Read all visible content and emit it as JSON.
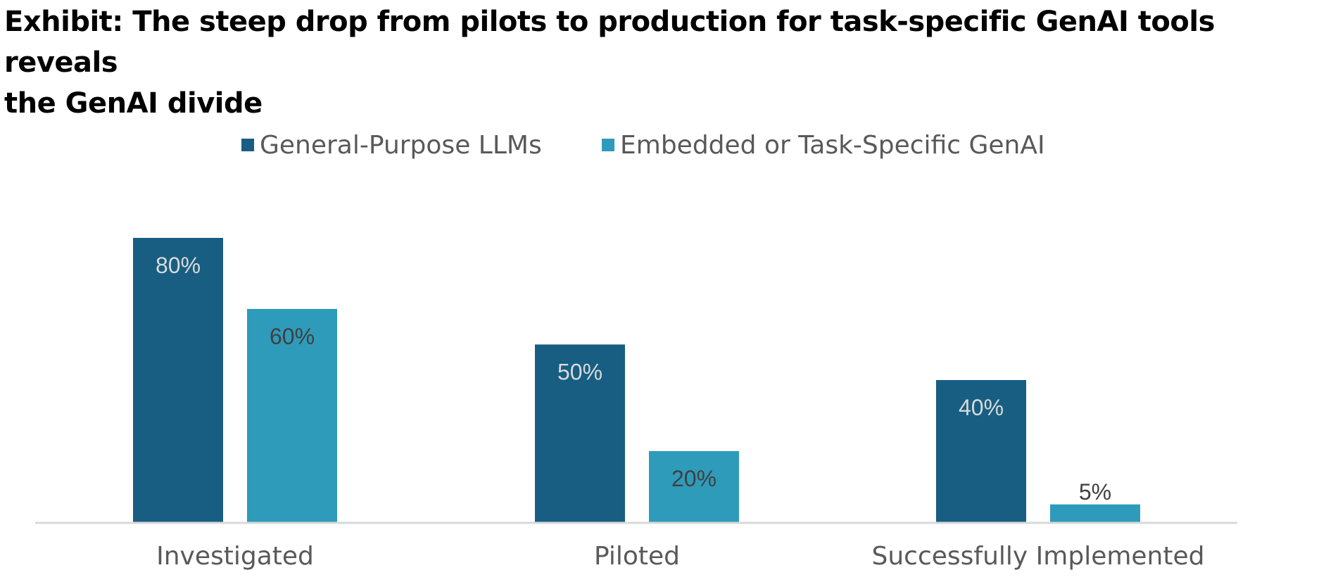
{
  "title": {
    "line1": "Exhibit: The steep drop from pilots to production for task-specific GenAI tools reveals",
    "line2": "the GenAI divide"
  },
  "chart_data": {
    "type": "bar",
    "categories": [
      "Investigated",
      "Piloted",
      "Successfully Implemented"
    ],
    "series": [
      {
        "name": "General-Purpose LLMs",
        "values": [
          80,
          50,
          40
        ],
        "labels": [
          "80%",
          "50%",
          "40%"
        ],
        "color": "#175E82",
        "label_color": "#D9D9D9"
      },
      {
        "name": "Embedded or Task-Specific GenAI",
        "values": [
          60,
          20,
          5
        ],
        "labels": [
          "60%",
          "20%",
          "5%"
        ],
        "color": "#2E9BBA",
        "label_color": "#404040"
      }
    ],
    "ylim": [
      0,
      100
    ],
    "legend": "top-center",
    "grid": false,
    "xlabel": "",
    "ylabel": ""
  }
}
